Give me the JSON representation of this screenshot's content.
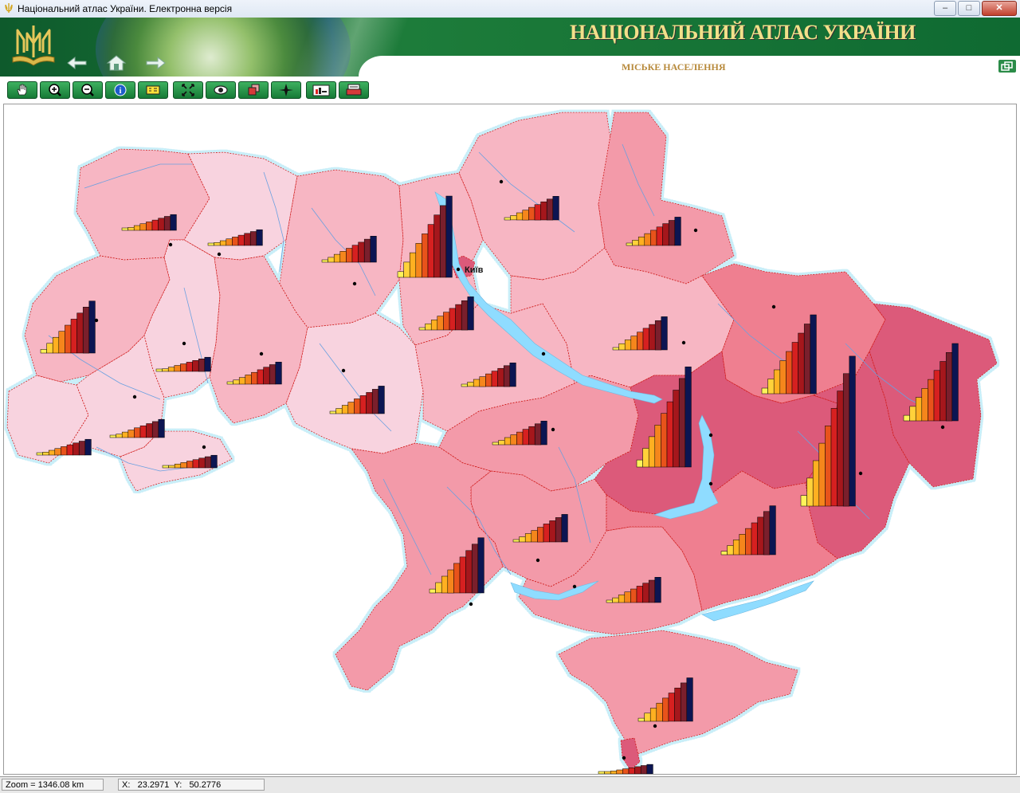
{
  "window": {
    "title": "Національний атлас України. Електронна версія",
    "buttons": [
      "minimize",
      "maximize",
      "close"
    ]
  },
  "banner": {
    "atlas_title": "НАЦІОНАЛЬНИЙ АТЛАС УКРАЇНИ",
    "section_title": "МІСЬКЕ НАСЕЛЕННЯ",
    "nav": [
      "back-arrow-icon",
      "home-icon",
      "forward-arrow-icon"
    ]
  },
  "toolbar": {
    "tools": [
      {
        "name": "pan-tool-button",
        "icon": "hand-icon"
      },
      {
        "name": "zoom-in-button",
        "icon": "zoom-in-icon"
      },
      {
        "name": "zoom-out-button",
        "icon": "zoom-out-icon"
      },
      {
        "name": "info-button",
        "icon": "info-icon"
      },
      {
        "name": "legend-button",
        "icon": "legend-icon"
      },
      {
        "name": "full-extent-button",
        "icon": "expand-icon"
      },
      {
        "name": "overview-button",
        "icon": "eye-icon"
      },
      {
        "name": "layers-button",
        "icon": "layers-icon"
      },
      {
        "name": "compass-button",
        "icon": "compass-icon"
      },
      {
        "name": "chart-button",
        "icon": "chart-icon"
      },
      {
        "name": "print-button",
        "icon": "print-icon"
      }
    ]
  },
  "map": {
    "city_label": "Київ",
    "colors": {
      "class1": "#f8d3df",
      "class2": "#f7b6c3",
      "class3": "#f39aa9",
      "class4": "#ef7f90",
      "class5": "#dc5a7a",
      "border": "#d01818",
      "water": "#8fdcff",
      "bars": [
        "#fff35a",
        "#ffd23a",
        "#ffb021",
        "#f5861c",
        "#e8531b",
        "#d62020",
        "#a5171c",
        "#7a1f2c",
        "#0c1552"
      ]
    }
  },
  "status": {
    "zoom": "Zoom = 1346.08 km",
    "x_label": "X:",
    "x_value": "23.2971",
    "y_label": "Y:",
    "y_value": "50.2776"
  }
}
